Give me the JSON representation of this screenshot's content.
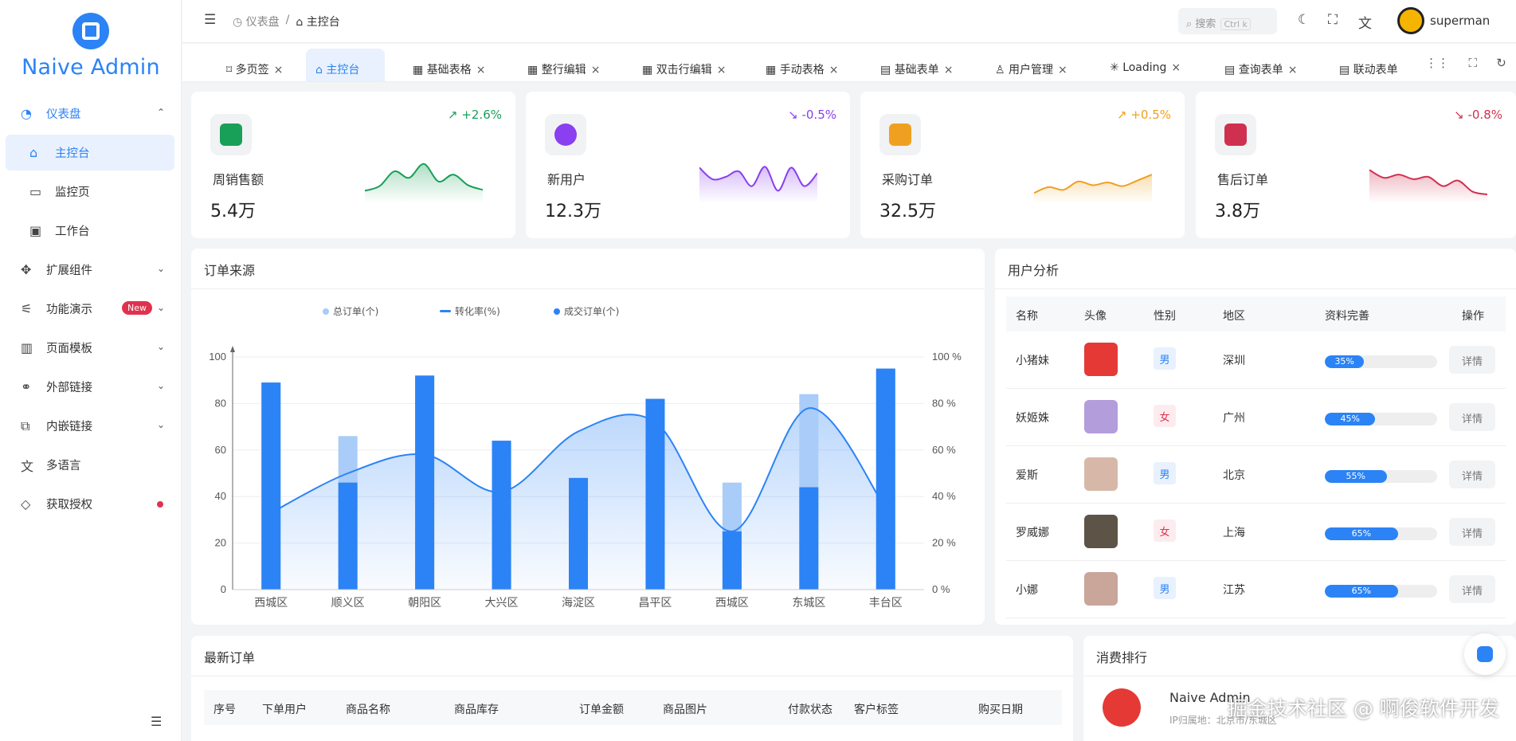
{
  "brand": {
    "title": "Naive Admin",
    "accent": "#2b83f6"
  },
  "sidebar": {
    "items": [
      {
        "label": "仪表盘",
        "icon": "dashboard-icon"
      },
      {
        "label": "主控台",
        "icon": "home-icon"
      },
      {
        "label": "监控页",
        "icon": "monitor-icon"
      },
      {
        "label": "工作台",
        "icon": "workbench-icon"
      },
      {
        "label": "扩展组件",
        "icon": "components-icon"
      },
      {
        "label": "功能演示",
        "icon": "demo-icon",
        "badge": "New"
      },
      {
        "label": "页面模板",
        "icon": "template-icon"
      },
      {
        "label": "外部链接",
        "icon": "link-icon"
      },
      {
        "label": "内嵌链接",
        "icon": "embed-icon"
      },
      {
        "label": "多语言",
        "icon": "translate-icon"
      },
      {
        "label": "获取授权",
        "icon": "diamond-icon"
      }
    ]
  },
  "header": {
    "breadcrumb": [
      "仪表盘",
      "主控台"
    ],
    "search_label": "搜索",
    "search_shortcut": "Ctrl k",
    "username": "superman"
  },
  "tabs": [
    "多页签",
    "主控台",
    "基础表格",
    "整行编辑",
    "双击行编辑",
    "手动表格",
    "基础表单",
    "用户管理",
    "Loading",
    "查询表单",
    "联动表单"
  ],
  "stats": [
    {
      "name": "周销售额",
      "value": "5.4万",
      "change": "+2.6%",
      "trend": "up",
      "color": "#18a058",
      "spark": [
        20,
        30,
        62,
        48,
        78,
        40,
        55,
        32,
        22
      ]
    },
    {
      "name": "新用户",
      "value": "12.3万",
      "change": "-0.5%",
      "trend": "down",
      "color": "#8a3ff0",
      "spark": [
        70,
        45,
        50,
        62,
        30,
        72,
        20,
        70,
        30,
        58
      ]
    },
    {
      "name": "采购订单",
      "value": "32.5万",
      "change": "+0.5%",
      "trend": "up",
      "color": "#f0a020",
      "spark": [
        15,
        28,
        22,
        40,
        32,
        38,
        30,
        42,
        55
      ]
    },
    {
      "name": "售后订单",
      "value": "3.8万",
      "change": "-0.8%",
      "trend": "down",
      "color": "#d03050",
      "spark": [
        65,
        48,
        55,
        45,
        50,
        30,
        42,
        18,
        12
      ]
    }
  ],
  "orders_source": {
    "title": "订单来源"
  },
  "chart_data": {
    "type": "bar",
    "title": "订单来源",
    "categories": [
      "西城区",
      "顺义区",
      "朝阳区",
      "大兴区",
      "海淀区",
      "昌平区",
      "西城区",
      "东城区",
      "丰台区"
    ],
    "series": [
      {
        "name": "总订单(个)",
        "type": "bar",
        "values": [
          89,
          66,
          92,
          64,
          48,
          82,
          46,
          84,
          95
        ]
      },
      {
        "name": "成交订单(个)",
        "type": "bar",
        "values": [
          89,
          46,
          92,
          64,
          48,
          82,
          25,
          44,
          95
        ]
      },
      {
        "name": "转化率(%)",
        "type": "line",
        "axis": "right",
        "values": [
          33,
          50,
          58,
          42,
          68,
          72,
          25,
          78,
          35
        ]
      }
    ],
    "ylim": [
      0,
      100
    ],
    "y_ticks": [
      "0",
      "20",
      "40",
      "60",
      "80",
      "100"
    ],
    "y2_ticks": [
      "0 %",
      "20 %",
      "40 %",
      "60 %",
      "80 %",
      "100 %"
    ],
    "colors": {
      "total": "#a9ccf8",
      "deal": "#2b83f6",
      "rate": "#2b83f6"
    }
  },
  "user_analysis": {
    "title": "用户分析",
    "headers": [
      "名称",
      "头像",
      "性别",
      "地区",
      "资料完善",
      "操作"
    ],
    "rows": [
      {
        "name": "小猪妹",
        "gender": "男",
        "region": "深圳",
        "progress": "35%",
        "pct": 35,
        "action": "详情"
      },
      {
        "name": "妖姬姝",
        "gender": "女",
        "region": "广州",
        "progress": "45%",
        "pct": 45,
        "action": "详情"
      },
      {
        "name": "爱斯",
        "gender": "男",
        "region": "北京",
        "progress": "55%",
        "pct": 55,
        "action": "详情"
      },
      {
        "name": "罗威娜",
        "gender": "女",
        "region": "上海",
        "progress": "65%",
        "pct": 65,
        "action": "详情"
      },
      {
        "name": "小娜",
        "gender": "男",
        "region": "江苏",
        "progress": "65%",
        "pct": 65,
        "action": "详情"
      }
    ]
  },
  "latest_orders": {
    "title": "最新订单",
    "headers": [
      "序号",
      "下单用户",
      "商品名称",
      "商品库存",
      "订单金额",
      "商品图片",
      "付款状态",
      "客户标签",
      "购买日期"
    ]
  },
  "ranking": {
    "title": "消费排行",
    "top_name": "Naive Admin",
    "top_ip": "IP归属地：北京市/东城区"
  },
  "watermark": "掘金技术社区 @ 啊俊软件开发"
}
